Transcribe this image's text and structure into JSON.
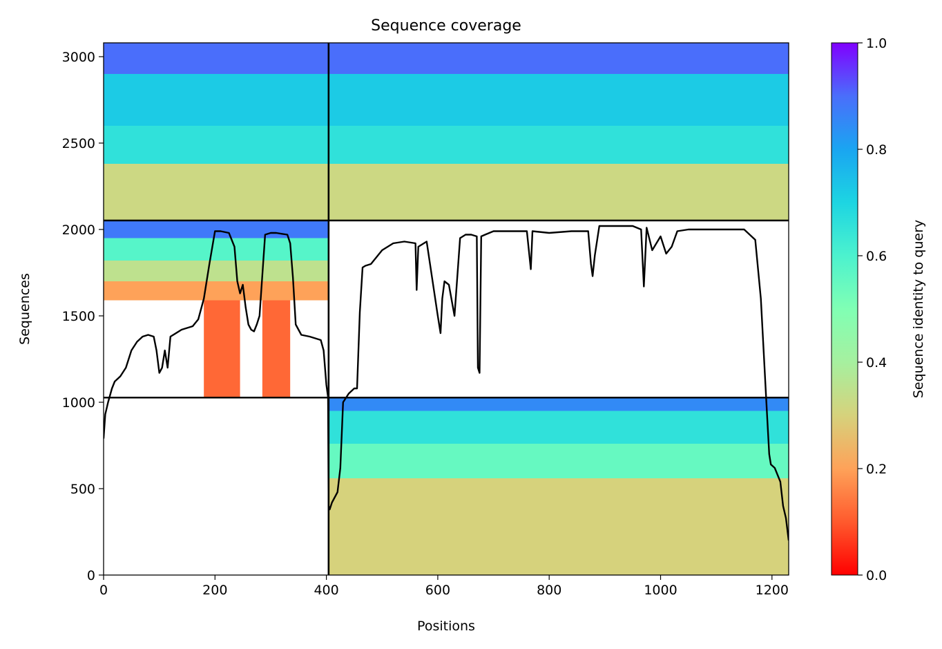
{
  "chart_data": {
    "type": "heatmap",
    "title": "Sequence coverage",
    "xlabel": "Positions",
    "ylabel": "Sequences",
    "xlim": [
      0,
      1230
    ],
    "ylim": [
      0,
      3080
    ],
    "xticks": [
      0,
      200,
      400,
      600,
      800,
      1000,
      1200
    ],
    "yticks": [
      0,
      500,
      1000,
      1500,
      2000,
      2500,
      3000
    ],
    "xtick_labels": [
      "0",
      "200",
      "400",
      "600",
      "800",
      "1000",
      "1200"
    ],
    "ytick_labels": [
      "0",
      "500",
      "1000",
      "1500",
      "2000",
      "2500",
      "3000"
    ],
    "colorbar": {
      "label": "Sequence identity to query",
      "range": [
        0.0,
        1.0
      ],
      "ticks": [
        0.0,
        0.2,
        0.4,
        0.6,
        0.8,
        1.0
      ],
      "tick_labels": [
        "0.0",
        "0.2",
        "0.4",
        "0.6",
        "0.8",
        "1.0"
      ],
      "colormap": "rainbow_r"
    },
    "grid": false,
    "chain_boundaries": {
      "x": [
        404
      ],
      "y": [
        1027,
        2052
      ]
    },
    "blocks": [
      {
        "name": "chain A pairing block 1",
        "x_range": [
          0,
          404
        ],
        "y_range": [
          2052,
          3080
        ],
        "identity_bands": [
          {
            "y": [
              2900,
              3080
            ],
            "identity": 0.9
          },
          {
            "y": [
              2600,
              2900
            ],
            "identity": 0.72
          },
          {
            "y": [
              2380,
              2600
            ],
            "identity": 0.66
          },
          {
            "y": [
              2052,
              2380
            ],
            "identity": 0.32
          }
        ]
      },
      {
        "name": "chain B pairing block 1",
        "x_range": [
          404,
          1230
        ],
        "y_range": [
          2052,
          3080
        ],
        "identity_bands": [
          {
            "y": [
              2900,
              3080
            ],
            "identity": 0.9
          },
          {
            "y": [
              2600,
              2900
            ],
            "identity": 0.72
          },
          {
            "y": [
              2380,
              2600
            ],
            "identity": 0.66
          },
          {
            "y": [
              2052,
              2380
            ],
            "identity": 0.32
          }
        ]
      },
      {
        "name": "chain A unpaired",
        "x_range": [
          0,
          404
        ],
        "y_range": [
          1027,
          2052
        ],
        "identity_bands": [
          {
            "y": [
              1950,
              2052
            ],
            "identity": 0.88
          },
          {
            "y": [
              1820,
              1950
            ],
            "identity": 0.58
          },
          {
            "y": [
              1700,
              1820
            ],
            "identity": 0.35
          },
          {
            "y": [
              1590,
              1700
            ],
            "identity": 0.2
          },
          {
            "y": [
              1027,
              1590
            ],
            "identity": 0.12,
            "x_ranges": [
              [
                180,
                245
              ],
              [
                285,
                335
              ]
            ]
          }
        ]
      },
      {
        "name": "chain B unpaired",
        "x_range": [
          404,
          1230
        ],
        "y_range": [
          0,
          1027
        ],
        "identity_bands": [
          {
            "y": [
              950,
              1027
            ],
            "identity": 0.85
          },
          {
            "y": [
              760,
              950
            ],
            "identity": 0.66
          },
          {
            "y": [
              560,
              760
            ],
            "identity": 0.55
          },
          {
            "y": [
              0,
              560
            ],
            "identity": 0.3
          }
        ]
      }
    ],
    "coverage_line": {
      "name": "coverage",
      "x": [
        0,
        3,
        8,
        15,
        20,
        30,
        40,
        50,
        60,
        70,
        80,
        90,
        95,
        100,
        105,
        110,
        115,
        120,
        140,
        160,
        170,
        180,
        190,
        200,
        210,
        225,
        235,
        240,
        245,
        250,
        255,
        260,
        265,
        270,
        275,
        280,
        290,
        300,
        310,
        320,
        330,
        335,
        340,
        345,
        355,
        370,
        380,
        390,
        395,
        400,
        403,
        404,
        406,
        410,
        420,
        425,
        430,
        440,
        450,
        455,
        460,
        465,
        470,
        480,
        500,
        520,
        540,
        560,
        562,
        565,
        580,
        600,
        605,
        608,
        612,
        620,
        630,
        640,
        650,
        660,
        670,
        672,
        675,
        678,
        685,
        700,
        740,
        760,
        767,
        770,
        800,
        840,
        870,
        875,
        878,
        882,
        890,
        930,
        950,
        965,
        970,
        975,
        985,
        1000,
        1010,
        1020,
        1030,
        1050,
        1100,
        1150,
        1170,
        1180,
        1190,
        1195,
        1198,
        1205,
        1215,
        1220,
        1225,
        1230
      ],
      "y": [
        790,
        930,
        1000,
        1080,
        1120,
        1150,
        1200,
        1300,
        1350,
        1380,
        1390,
        1380,
        1300,
        1170,
        1200,
        1300,
        1200,
        1380,
        1420,
        1440,
        1480,
        1600,
        1800,
        1990,
        1990,
        1980,
        1900,
        1700,
        1630,
        1680,
        1550,
        1450,
        1420,
        1410,
        1450,
        1500,
        1970,
        1980,
        1980,
        1975,
        1970,
        1920,
        1720,
        1450,
        1390,
        1380,
        1370,
        1360,
        1300,
        1100,
        1030,
        400,
        380,
        420,
        480,
        620,
        1000,
        1050,
        1080,
        1080,
        1520,
        1780,
        1790,
        1800,
        1880,
        1920,
        1930,
        1920,
        1650,
        1900,
        1930,
        1500,
        1400,
        1600,
        1700,
        1680,
        1500,
        1950,
        1970,
        1970,
        1960,
        1200,
        1170,
        1960,
        1970,
        1990,
        1990,
        1990,
        1770,
        1990,
        1980,
        1990,
        1990,
        1800,
        1730,
        1850,
        2020,
        2020,
        2020,
        2000,
        1670,
        2010,
        1880,
        1960,
        1860,
        1900,
        1990,
        2000,
        2000,
        2000,
        1940,
        1600,
        1000,
        700,
        640,
        620,
        540,
        400,
        330,
        200
      ]
    }
  }
}
